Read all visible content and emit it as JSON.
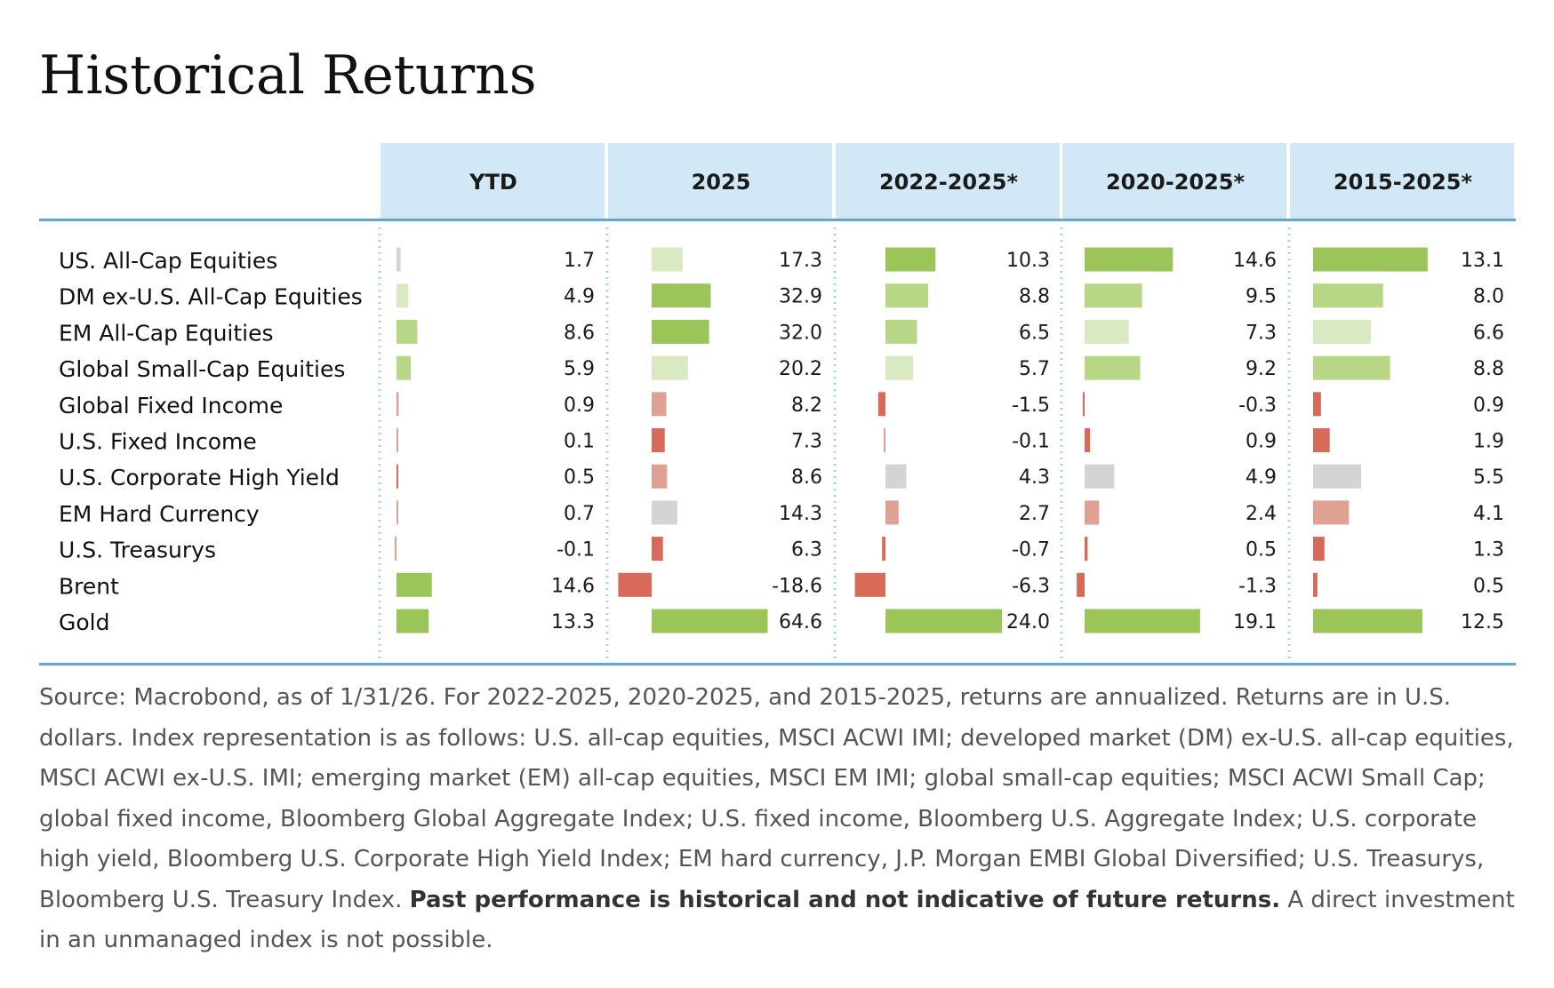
{
  "title": "Historical Returns",
  "colors": {
    "header_bg": "#d3e8f7",
    "rule": "#5ea8d6",
    "dotted_divider": "#aad3ef",
    "strong_green": "#9bc459",
    "medium_green": "#b7d787",
    "light_green": "#d9eac2",
    "gray": "#d4d4d4",
    "light_red": "#e0a195",
    "red": "#d76a58"
  },
  "chart_data": {
    "type": "table",
    "columns": [
      "YTD",
      "2025",
      "2022-2025*",
      "2020-2025*",
      "2015-2025*"
    ],
    "rows": [
      {
        "name": "US. All-Cap Equities",
        "values": [
          1.7,
          17.3,
          10.3,
          14.6,
          13.1
        ],
        "labels": [
          "1.7",
          "17.3",
          "10.3",
          "14.6",
          "13.1"
        ],
        "shades": [
          "gray",
          "light_green",
          "strong_green",
          "strong_green",
          "strong_green"
        ]
      },
      {
        "name": "DM ex-U.S. All-Cap Equities",
        "values": [
          4.9,
          32.9,
          8.8,
          9.5,
          8.0
        ],
        "labels": [
          "4.9",
          "32.9",
          "8.8",
          "9.5",
          "8.0"
        ],
        "shades": [
          "light_green",
          "strong_green",
          "medium_green",
          "medium_green",
          "medium_green"
        ]
      },
      {
        "name": "EM All-Cap Equities",
        "values": [
          8.6,
          32.0,
          6.5,
          7.3,
          6.6
        ],
        "labels": [
          "8.6",
          "32.0",
          "6.5",
          "7.3",
          "6.6"
        ],
        "shades": [
          "medium_green",
          "strong_green",
          "medium_green",
          "light_green",
          "light_green"
        ]
      },
      {
        "name": "Global Small-Cap Equities",
        "values": [
          5.9,
          20.2,
          5.7,
          9.2,
          8.8
        ],
        "labels": [
          "5.9",
          "20.2",
          "5.7",
          "9.2",
          "8.8"
        ],
        "shades": [
          "medium_green",
          "light_green",
          "light_green",
          "medium_green",
          "medium_green"
        ]
      },
      {
        "name": "Global Fixed Income",
        "values": [
          0.9,
          8.2,
          -1.5,
          -0.3,
          0.9
        ],
        "labels": [
          "0.9",
          "8.2",
          "-1.5",
          "-0.3",
          "0.9"
        ],
        "shades": [
          "light_red",
          "light_red",
          "red",
          "red",
          "red"
        ]
      },
      {
        "name": "U.S. Fixed Income",
        "values": [
          0.1,
          7.3,
          -0.1,
          0.9,
          1.9
        ],
        "labels": [
          "0.1",
          "7.3",
          "-0.1",
          "0.9",
          "1.9"
        ],
        "shades": [
          "light_red",
          "red",
          "light_red",
          "red",
          "red"
        ]
      },
      {
        "name": "U.S. Corporate High Yield",
        "values": [
          0.5,
          8.6,
          4.3,
          4.9,
          5.5
        ],
        "labels": [
          "0.5",
          "8.6",
          "4.3",
          "4.9",
          "5.5"
        ],
        "shades": [
          "red",
          "light_red",
          "gray",
          "gray",
          "gray"
        ]
      },
      {
        "name": "EM Hard Currency",
        "values": [
          0.7,
          14.3,
          2.7,
          2.4,
          4.1
        ],
        "labels": [
          "0.7",
          "14.3",
          "2.7",
          "2.4",
          "4.1"
        ],
        "shades": [
          "light_red",
          "gray",
          "light_red",
          "light_red",
          "light_red"
        ]
      },
      {
        "name": "U.S. Treasurys",
        "values": [
          -0.1,
          6.3,
          -0.7,
          0.5,
          1.3
        ],
        "labels": [
          "-0.1",
          "6.3",
          "-0.7",
          "0.5",
          "1.3"
        ],
        "shades": [
          "light_red",
          "red",
          "red",
          "red",
          "red"
        ]
      },
      {
        "name": "Brent",
        "values": [
          14.6,
          -18.6,
          -6.3,
          -1.3,
          0.5
        ],
        "labels": [
          "14.6",
          "-18.6",
          "-6.3",
          "-1.3",
          "0.5"
        ],
        "shades": [
          "strong_green",
          "red",
          "red",
          "red",
          "red"
        ]
      },
      {
        "name": "Gold",
        "values": [
          13.3,
          64.6,
          24.0,
          19.1,
          12.5
        ],
        "labels": [
          "13.3",
          "64.6",
          "24.0",
          "19.1",
          "12.5"
        ],
        "shades": [
          "strong_green",
          "strong_green",
          "strong_green",
          "strong_green",
          "strong_green"
        ]
      }
    ]
  },
  "footnote": {
    "text": "Source: Macrobond, as of 1/31/26. For 2022-2025, 2020-2025, and 2015-2025, returns are annualized. Returns are in U.S. dollars. Index representation is as follows: U.S. all-cap equities, MSCI ACWI IMI; developed market (DM) ex-U.S. all-cap equities, MSCI ACWI ex-U.S. IMI; emerging market (EM) all-cap equities, MSCI EM IMI; global small-cap equities; MSCI ACWI Small Cap; global fixed income, Bloomberg Global Aggregate Index; U.S. fixed income, Bloomberg U.S. Aggregate Index; U.S. corporate high yield, Bloomberg U.S. Corporate High Yield Index; EM hard currency, J.P. Morgan EMBI Global Diversified; U.S. Treasurys, Bloomberg U.S. Treasury Index.",
    "bold": "Past performance is historical and not indicative of future returns.",
    "tail": "A direct investment in an unmanaged index is not possible."
  }
}
